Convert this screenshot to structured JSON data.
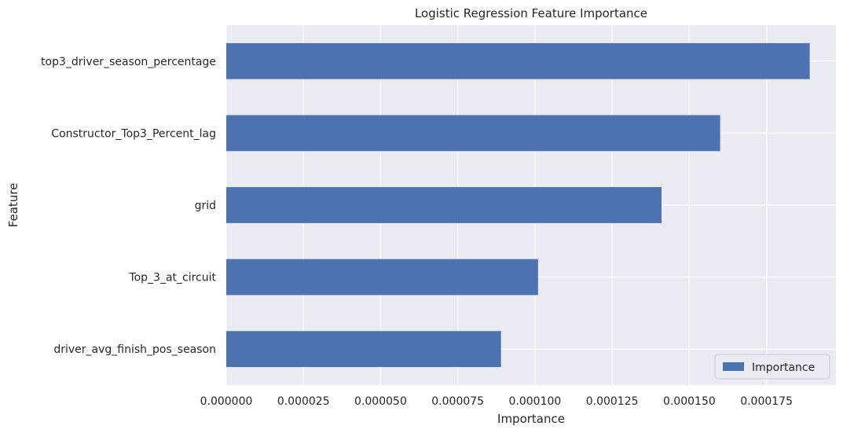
{
  "chart_data": {
    "type": "bar",
    "orientation": "horizontal",
    "title": "Logistic Regression Feature Importance",
    "xlabel": "Importance",
    "ylabel": "Feature",
    "categories": [
      "top3_driver_season_percentage",
      "Constructor_Top3_Percent_lag",
      "grid",
      "Top_3_at_circuit",
      "driver_avg_finish_pos_season"
    ],
    "series": [
      {
        "name": "Importance",
        "values": [
          0.000189,
          0.00016,
          0.000141,
          0.000101,
          8.9e-05
        ],
        "color": "#4c72b0"
      }
    ],
    "xlim": [
      0,
      0.0001975
    ],
    "xticks": [
      0,
      2.5e-05,
      5e-05,
      7.5e-05,
      0.0001,
      0.000125,
      0.00015,
      0.000175
    ],
    "xtick_labels": [
      "0.000000",
      "0.000025",
      "0.000050",
      "0.000075",
      "0.000100",
      "0.000125",
      "0.000150",
      "0.000175"
    ],
    "grid": true,
    "background_color": "#eaeaf2",
    "grid_color": "#ffffff",
    "legend_placement": "lower right"
  }
}
